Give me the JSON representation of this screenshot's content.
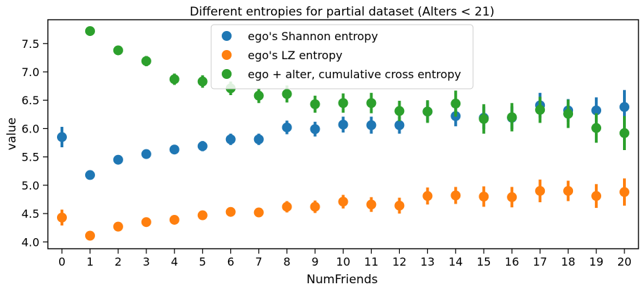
{
  "chart_data": {
    "type": "scatter",
    "title": "Different entropies for partial dataset (Alters < 21)",
    "xlabel": "NumFriends",
    "ylabel": "value",
    "x": [
      0,
      1,
      2,
      3,
      4,
      5,
      6,
      7,
      8,
      9,
      10,
      11,
      12,
      13,
      14,
      15,
      16,
      17,
      18,
      19,
      20
    ],
    "xlim": [
      -0.5,
      20.5
    ],
    "ylim": [
      3.88,
      7.92
    ],
    "yticks": [
      4.0,
      4.5,
      5.0,
      5.5,
      6.0,
      6.5,
      7.0,
      7.5
    ],
    "ytick_labels": [
      "4.0",
      "4.5",
      "5.0",
      "5.5",
      "6.0",
      "6.5",
      "7.0",
      "7.5"
    ],
    "xtick_labels": [
      "0",
      "1",
      "2",
      "3",
      "4",
      "5",
      "6",
      "7",
      "8",
      "9",
      "10",
      "11",
      "12",
      "13",
      "14",
      "15",
      "16",
      "17",
      "18",
      "19",
      "20"
    ],
    "grid": false,
    "legend_position": "top-center",
    "series": [
      {
        "name": "ego's Shannon entropy",
        "color": "#1f77b4",
        "x": [
          0,
          1,
          2,
          3,
          4,
          5,
          6,
          7,
          8,
          9,
          10,
          11,
          12,
          13,
          14,
          15,
          16,
          17,
          18,
          19,
          20
        ],
        "values": [
          5.85,
          5.18,
          5.45,
          5.55,
          5.63,
          5.69,
          5.81,
          5.81,
          6.02,
          5.99,
          6.07,
          6.06,
          6.06,
          6.3,
          6.22,
          6.19,
          6.19,
          6.41,
          6.32,
          6.32,
          6.38
        ],
        "err": [
          0.18,
          0.04,
          0.05,
          0.06,
          0.08,
          0.09,
          0.1,
          0.1,
          0.12,
          0.13,
          0.14,
          0.15,
          0.15,
          0.18,
          0.18,
          0.2,
          0.2,
          0.22,
          0.2,
          0.23,
          0.3
        ]
      },
      {
        "name": "ego's LZ entropy",
        "color": "#ff7f0e",
        "x": [
          0,
          1,
          2,
          3,
          4,
          5,
          6,
          7,
          8,
          9,
          10,
          11,
          12,
          13,
          14,
          15,
          16,
          17,
          18,
          19,
          20
        ],
        "values": [
          4.43,
          4.11,
          4.27,
          4.35,
          4.39,
          4.47,
          4.53,
          4.52,
          4.62,
          4.62,
          4.71,
          4.66,
          4.64,
          4.81,
          4.82,
          4.8,
          4.79,
          4.9,
          4.9,
          4.81,
          4.88
        ],
        "err": [
          0.14,
          0.03,
          0.04,
          0.05,
          0.06,
          0.07,
          0.08,
          0.08,
          0.1,
          0.11,
          0.12,
          0.13,
          0.14,
          0.15,
          0.15,
          0.18,
          0.18,
          0.2,
          0.18,
          0.21,
          0.24
        ]
      },
      {
        "name": "ego + alter, cumulative cross entropy",
        "color": "#2ca02c",
        "x": [
          1,
          2,
          3,
          4,
          5,
          6,
          7,
          8,
          9,
          10,
          11,
          12,
          13,
          14,
          15,
          16,
          17,
          18,
          19,
          20
        ],
        "values": [
          7.72,
          7.38,
          7.19,
          6.87,
          6.83,
          6.71,
          6.58,
          6.61,
          6.43,
          6.45,
          6.45,
          6.31,
          6.3,
          6.44,
          6.17,
          6.2,
          6.33,
          6.26,
          6.01,
          5.92
        ],
        "err": [
          0.07,
          0.07,
          0.09,
          0.1,
          0.11,
          0.12,
          0.13,
          0.15,
          0.15,
          0.17,
          0.18,
          0.18,
          0.2,
          0.23,
          0.26,
          0.25,
          0.23,
          0.25,
          0.26,
          0.3
        ]
      }
    ]
  }
}
